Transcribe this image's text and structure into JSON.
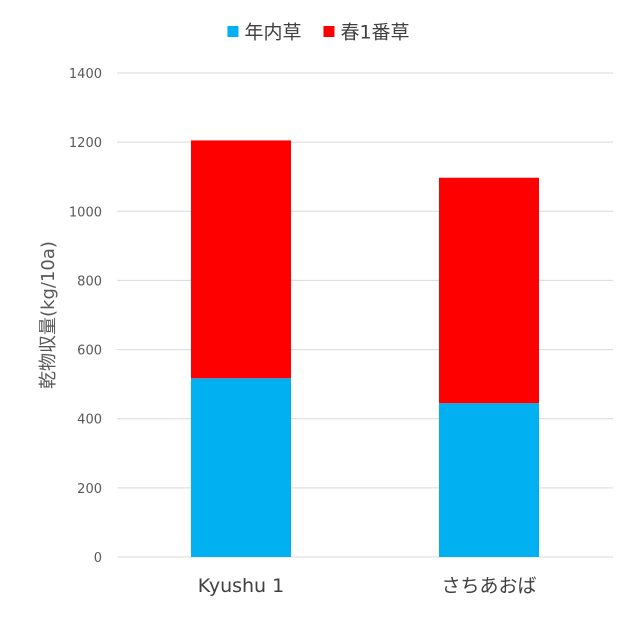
{
  "chart_data": {
    "type": "bar",
    "stacked": true,
    "categories": [
      "Kyushu 1",
      "さちあおば"
    ],
    "series": [
      {
        "name": "年内草",
        "color": "#00b0f0",
        "values": [
          517,
          445
        ]
      },
      {
        "name": "春1番草",
        "color": "#ff0000",
        "values": [
          688,
          652
        ]
      }
    ],
    "ylabel": "乾物収量(kg/10a)",
    "xlabel": "",
    "ylim": [
      0,
      1400
    ],
    "yticks": [
      0,
      200,
      400,
      600,
      800,
      1000,
      1200,
      1400
    ],
    "grid": true,
    "legend_position": "top"
  }
}
